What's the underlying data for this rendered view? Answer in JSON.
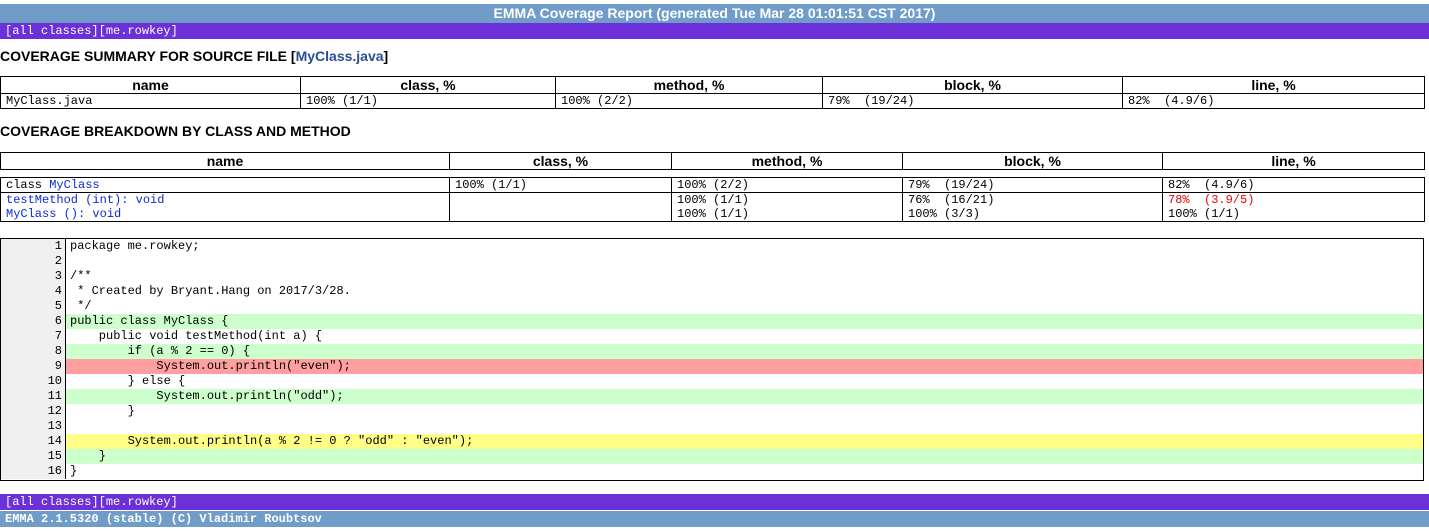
{
  "header": {
    "title": "EMMA Coverage Report (generated Tue Mar 28 01:01:51 CST 2017)"
  },
  "nav": {
    "all_classes": "[all classes]",
    "package": "[me.rowkey]"
  },
  "summary": {
    "heading_prefix": "COVERAGE SUMMARY FOR SOURCE FILE [",
    "heading_link": "MyClass.java",
    "heading_suffix": "]",
    "columns": [
      "name",
      "class, %",
      "method, %",
      "block, %",
      "line, %"
    ],
    "row": {
      "name": "MyClass.java",
      "class": "100% (1/1)",
      "method": "100% (2/2)",
      "block": "79%  (19/24)",
      "line": "82%  (4.9/6)"
    }
  },
  "breakdown": {
    "heading": "COVERAGE BREAKDOWN BY CLASS AND METHOD",
    "columns": [
      "name",
      "class, %",
      "method, %",
      "block, %",
      "line, %"
    ],
    "rows": [
      {
        "prefix": "class ",
        "name": "MyClass",
        "class": "100% (1/1)",
        "method": "100% (2/2)",
        "block": "79%  (19/24)",
        "line": "82%  (4.9/6)"
      },
      {
        "prefix": "",
        "name": "testMethod (int): void",
        "class": "",
        "method": "100% (1/1)",
        "block": "76%  (16/21)",
        "line": "78%  (3.9/5)"
      },
      {
        "prefix": "",
        "name": "MyClass (): void",
        "class": "",
        "method": "100% (1/1)",
        "block": "100% (3/3)",
        "line": "100% (1/1)"
      }
    ]
  },
  "source": {
    "lines": [
      {
        "num": "1",
        "code": "package me.rowkey;",
        "cov": "none"
      },
      {
        "num": "2",
        "code": "",
        "cov": "none"
      },
      {
        "num": "3",
        "code": "/**",
        "cov": "none"
      },
      {
        "num": "4",
        "code": " * Created by Bryant.Hang on 2017/3/28.",
        "cov": "none"
      },
      {
        "num": "5",
        "code": " */",
        "cov": "none"
      },
      {
        "num": "6",
        "code": "public class MyClass {",
        "cov": "green"
      },
      {
        "num": "7",
        "code": "    public void testMethod(int a) {",
        "cov": "none"
      },
      {
        "num": "8",
        "code": "        if (a % 2 == 0) {",
        "cov": "green"
      },
      {
        "num": "9",
        "code": "            System.out.println(\"even\");",
        "cov": "pink"
      },
      {
        "num": "10",
        "code": "        } else {",
        "cov": "none"
      },
      {
        "num": "11",
        "code": "            System.out.println(\"odd\");",
        "cov": "green"
      },
      {
        "num": "12",
        "code": "        }",
        "cov": "none"
      },
      {
        "num": "13",
        "code": "",
        "cov": "none"
      },
      {
        "num": "14",
        "code": "        System.out.println(a % 2 != 0 ? \"odd\" : \"even\");",
        "cov": "yellow"
      },
      {
        "num": "15",
        "code": "    }",
        "cov": "green"
      },
      {
        "num": "16",
        "code": "}",
        "cov": "none"
      }
    ]
  },
  "footer": {
    "text": "EMMA 2.1.5320 (stable) (C) Vladimir Roubtsov"
  },
  "colors": {
    "header_bg": "#6f9cc9",
    "nav_bg": "#6b30d8",
    "covered": "#ccffcc",
    "uncovered": "#ff9f9f",
    "partial": "#ffff88"
  }
}
